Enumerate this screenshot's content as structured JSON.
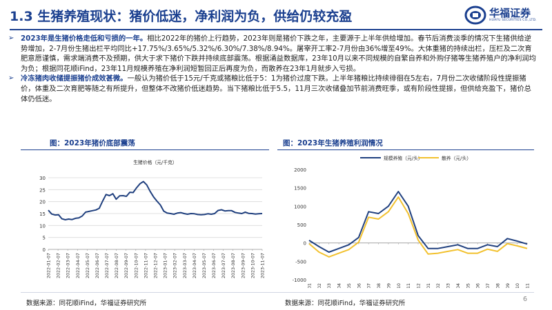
{
  "header": {
    "title": "1.3 生猪养殖现状：猪价低迷，净利润为负，供给仍较充盈",
    "logo_name": "华福证券",
    "logo_en": "HUAFU SECURITIES CO.,LTD.",
    "brand_color": "#1a3f8f"
  },
  "bullets": [
    {
      "lead": "2023年是生猪价格走低和亏损的一年。",
      "text": "相比2022年的猪价上行趋势，2023年则是猪价下跌之年，主要源于上半年供给增加。春节后消费淡季的情况下生猪供给逆势增加，2-7月份生猪出栏平均同比+17.75%/3.65%/5.32%/6.30%/7.38%/8.94%。屠宰开工率2-7月份由36%增至49%。大体重猪的持续出栏，压栏及二次育肥意愿谨慎，需求端消费不及预期，供大于求下猪价下跌并持续底部震荡。根据涌益数据库，23年10月以来不同规模的自繁自养和外购仔猪等生猪养殖户的净利润均为负；根据同花顺iFind，23年11月规模养殖在净利润短暂回正后再度为负，而散养在23年1月就步入亏损。"
    },
    {
      "lead": "冷冻猪肉收储提振猪价成效甚微。",
      "text": "一般认为猪价低于15元/千克或猪粮比低于5：1为猪价过度下跌。上半年猪粮比持续徘徊在5左右，7月份二次收储阶段性提振猪价，体重及二次育肥等随之有所提升，但整体不改猪价低迷趋势。当下猪粮比低于5.5，11月三次收储叠加节前消费旺季，或有阶段性提振，但供给充盈下，猪价总体仍低迷。"
    }
  ],
  "charts": {
    "left_title": "图：2023年猪价底部震荡",
    "right_title": "图：2023年生猪养殖利润情况",
    "left_source": "数据来源：同花顺iFind，华福证券研究所",
    "right_source": "数据来源：同花顺iFind，华福证券研究所"
  },
  "page_number": "6",
  "chart_data": [
    {
      "type": "line",
      "legend": [
        "生猪价格（元/千克）"
      ],
      "legend_position": "top-center",
      "x_ticks": [
        "2022-01-07",
        "2022-02-07",
        "2022-03-07",
        "2022-04-07",
        "2022-05-07",
        "2022-06-07",
        "2022-07-07",
        "2022-08-07",
        "2022-09-07",
        "2022-10-07",
        "2022-11-07",
        "2022-12-07",
        "2023-01-07",
        "2023-02-07",
        "2023-03-07",
        "2023-04-07",
        "2023-05-07",
        "2023-06-07",
        "2023-07-07",
        "2023-08-07",
        "2023-09-07",
        "2023-10-07",
        "2023-11-07"
      ],
      "ylim": [
        0,
        30
      ],
      "yticks": [
        0,
        5,
        10,
        15,
        20,
        25,
        30
      ],
      "grid": true,
      "color": "#1f3f7e",
      "series": [
        {
          "name": "生猪价格（元/千克）",
          "values": [
            16.4,
            14.8,
            14.4,
            14.5,
            12.8,
            12.4,
            12.7,
            12.5,
            13.0,
            13.2,
            14.0,
            15.6,
            15.9,
            16.2,
            16.5,
            17.2,
            20.2,
            23.0,
            22.5,
            23.3,
            21.0,
            22.4,
            22.5,
            22.2,
            23.9,
            23.8,
            25.8,
            27.5,
            28.4,
            27.0,
            24.3,
            22.0,
            20.2,
            18.6,
            16.0,
            15.2,
            15.0,
            14.7,
            15.2,
            15.4,
            15.0,
            14.7,
            15.0,
            14.9,
            14.6,
            14.5,
            14.6,
            14.9,
            14.7,
            15.0,
            16.3,
            16.6,
            16.1,
            16.2,
            16.2,
            15.5,
            15.2,
            15.0,
            15.6,
            15.1,
            15.0,
            14.8,
            14.9,
            15.0
          ]
        }
      ]
    },
    {
      "type": "line",
      "legend": [
        "规模养殖（元/头）",
        "散养（元/头）"
      ],
      "legend_position": "top-center",
      "x_ticks": [
        "2022-01",
        "2022-02",
        "2022-03",
        "2022-04",
        "2022-05",
        "2022-06",
        "2022-07",
        "2022-08",
        "2022-09",
        "2022-10",
        "2022-11",
        "2022-12",
        "2023-01",
        "2023-02",
        "2023-03",
        "2023-04",
        "2023-05",
        "2023-06",
        "2023-07",
        "2023-08",
        "2023-09",
        "2023-10",
        "2023-11"
      ],
      "ylim": [
        -1000,
        2000
      ],
      "yticks": [
        -1000,
        -500,
        0,
        500,
        1000,
        1500,
        2000
      ],
      "grid": false,
      "series": [
        {
          "name": "规模养殖（元/头）",
          "color": "#1f3f7e",
          "values": [
            70,
            -100,
            -250,
            -150,
            -50,
            150,
            850,
            800,
            1000,
            1400,
            1000,
            200,
            -150,
            -150,
            -100,
            -50,
            -150,
            -150,
            -50,
            -100,
            120,
            50,
            -30
          ]
        },
        {
          "name": "散养（元/头）",
          "color": "#f2c12e",
          "values": [
            -20,
            -250,
            -380,
            -280,
            -180,
            20,
            700,
            650,
            850,
            1250,
            800,
            80,
            -300,
            -280,
            -230,
            -180,
            -280,
            -280,
            -170,
            -230,
            -20,
            -80,
            -150
          ]
        }
      ]
    }
  ]
}
